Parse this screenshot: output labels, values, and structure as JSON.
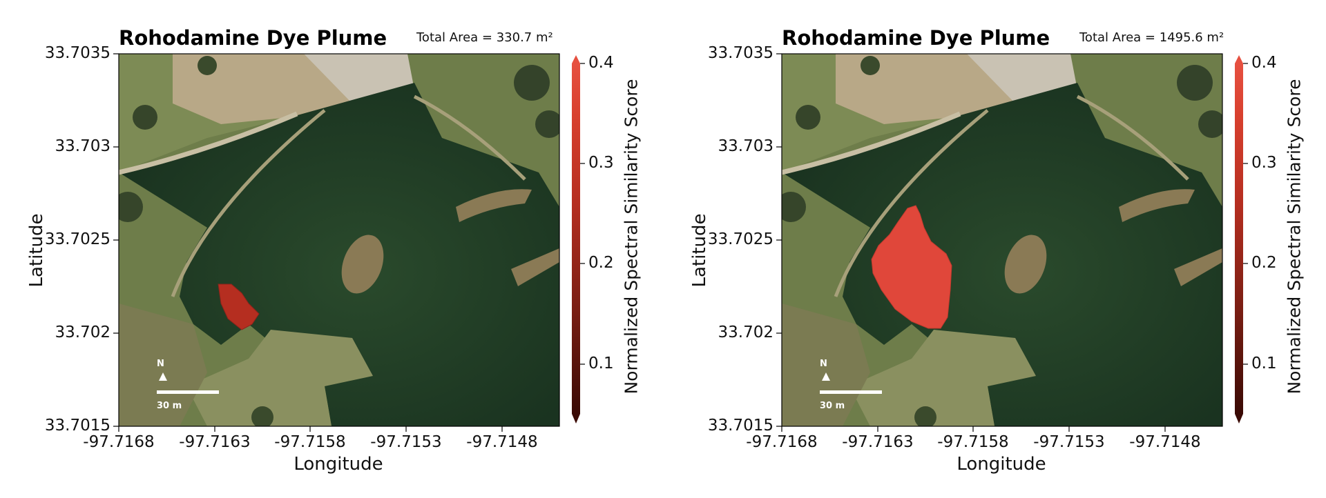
{
  "panels": [
    {
      "title": "Rohodamine Dye Plume",
      "total_area": "Total Area = 330.7 m²",
      "plume_level": "small",
      "xlabel": "Longitude",
      "ylabel": "Latitude",
      "xticks": [
        "-97.7168",
        "-97.7163",
        "-97.7158",
        "-97.7153",
        "-97.7148"
      ],
      "yticks": [
        "33.7035",
        "33.703",
        "33.7025",
        "33.702",
        "33.7015"
      ],
      "colorbar": {
        "label": "Normalized Spectral Similarity Score",
        "ticks": [
          "0.4",
          "0.3",
          "0.2",
          "0.1"
        ],
        "range": [
          0.05,
          0.4
        ],
        "colormap": [
          "#3a0a05",
          "#7a1e13",
          "#b52e20",
          "#d8402e",
          "#e65040"
        ]
      },
      "north": "N",
      "scale": "30 m"
    },
    {
      "title": "Rohodamine Dye Plume",
      "total_area": "Total Area = 1495.6 m²",
      "plume_level": "large",
      "xlabel": "Longitude",
      "ylabel": "Latitude",
      "xticks": [
        "-97.7168",
        "-97.7163",
        "-97.7158",
        "-97.7153",
        "-97.7148"
      ],
      "yticks": [
        "33.7035",
        "33.703",
        "33.7025",
        "33.702",
        "33.7015"
      ],
      "colorbar": {
        "label": "Normalized Spectral Similarity Score",
        "ticks": [
          "0.4",
          "0.3",
          "0.2",
          "0.1"
        ],
        "range": [
          0.05,
          0.4
        ],
        "colormap": [
          "#3a0a05",
          "#7a1e13",
          "#b52e20",
          "#d8402e",
          "#e65040"
        ]
      },
      "north": "N",
      "scale": "30 m"
    }
  ],
  "colors": {
    "water": "#1f3a22",
    "grass": "#6e7d4a",
    "dirt": "#b8a887",
    "plume": "#e0473a"
  }
}
